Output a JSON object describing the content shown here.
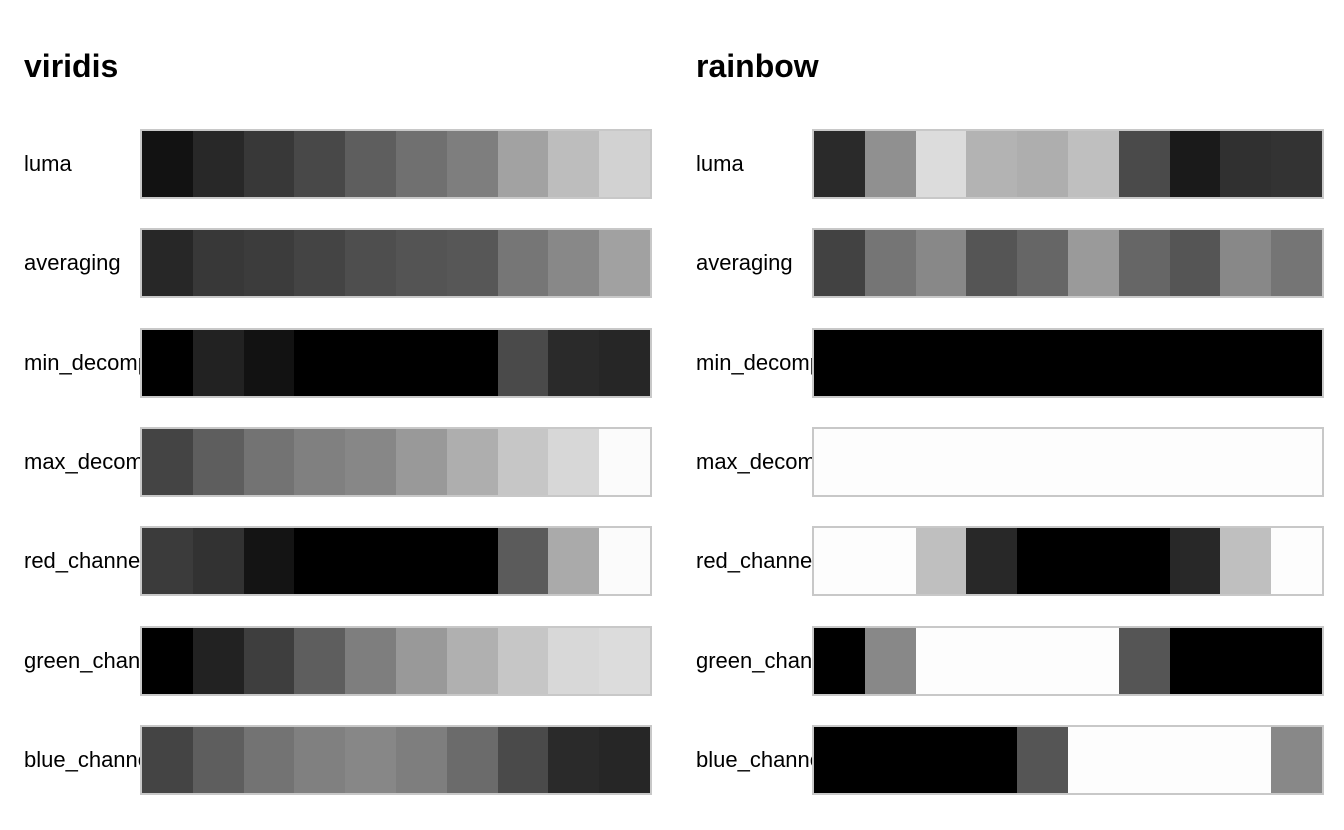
{
  "chart_data": [
    {
      "type": "heatmap",
      "title": "viridis",
      "rows": [
        {
          "label": "luma",
          "colors": [
            "#121212",
            "#282828",
            "#383838",
            "#484848",
            "#5e5e5e",
            "#707070",
            "#7e7e7e",
            "#a2a2a2",
            "#bdbdbd",
            "#d2d2d2"
          ]
        },
        {
          "label": "averaging",
          "colors": [
            "#272727",
            "#383838",
            "#3c3c3c",
            "#444444",
            "#4e4e4e",
            "#545454",
            "#575757",
            "#767676",
            "#888888",
            "#a1a1a1"
          ]
        },
        {
          "label": "min_decomp",
          "colors": [
            "#000000",
            "#222222",
            "#121212",
            "#000000",
            "#000000",
            "#000000",
            "#000000",
            "#4a4a4a",
            "#2a2a2a",
            "#262626"
          ]
        },
        {
          "label": "max_decomp",
          "colors": [
            "#444444",
            "#5e5e5e",
            "#737373",
            "#808080",
            "#878787",
            "#999999",
            "#aeaeae",
            "#c6c6c6",
            "#d7d7d7",
            "#fbfbfb"
          ]
        },
        {
          "label": "red_channel",
          "colors": [
            "#3b3b3b",
            "#323232",
            "#141414",
            "#000000",
            "#000000",
            "#000000",
            "#000000",
            "#5b5b5b",
            "#aaaaaa",
            "#fbfbfb"
          ]
        },
        {
          "label": "green_channel",
          "colors": [
            "#000000",
            "#222222",
            "#3e3e3e",
            "#5e5e5e",
            "#7e7e7e",
            "#999999",
            "#b0b0b0",
            "#c6c6c6",
            "#d8d8d8",
            "#dcdcdc"
          ]
        },
        {
          "label": "blue_channel",
          "colors": [
            "#444444",
            "#5e5e5e",
            "#737373",
            "#808080",
            "#878787",
            "#7e7e7e",
            "#6b6b6b",
            "#4a4a4a",
            "#2a2a2a",
            "#262626"
          ]
        }
      ]
    },
    {
      "type": "heatmap",
      "title": "rainbow",
      "rows": [
        {
          "label": "luma",
          "colors": [
            "#2a2a2a",
            "#909090",
            "#dcdcdc",
            "#b3b3b3",
            "#aeaeae",
            "#bfbfbf",
            "#4a4a4a",
            "#1a1a1a",
            "#303030",
            "#333333"
          ]
        },
        {
          "label": "averaging",
          "colors": [
            "#424242",
            "#757575",
            "#888888",
            "#555555",
            "#666666",
            "#9a9a9a",
            "#666666",
            "#555555",
            "#888888",
            "#757575"
          ]
        },
        {
          "label": "min_decomp",
          "colors": [
            "#000000",
            "#000000",
            "#000000",
            "#000000",
            "#000000",
            "#000000",
            "#000000",
            "#000000",
            "#000000",
            "#000000"
          ]
        },
        {
          "label": "max_decomp",
          "colors": [
            "#fdfdfd",
            "#fdfdfd",
            "#fdfdfd",
            "#fdfdfd",
            "#fdfdfd",
            "#fdfdfd",
            "#fdfdfd",
            "#fdfdfd",
            "#fdfdfd",
            "#fdfdfd"
          ]
        },
        {
          "label": "red_channel",
          "colors": [
            "#fdfdfd",
            "#fdfdfd",
            "#bfbfbf",
            "#282828",
            "#000000",
            "#000000",
            "#000000",
            "#282828",
            "#bfbfbf",
            "#fdfdfd"
          ]
        },
        {
          "label": "green_channel",
          "colors": [
            "#000000",
            "#888888",
            "#fdfdfd",
            "#fdfdfd",
            "#fdfdfd",
            "#fdfdfd",
            "#555555",
            "#000000",
            "#000000",
            "#000000"
          ]
        },
        {
          "label": "blue_channel",
          "colors": [
            "#000000",
            "#000000",
            "#000000",
            "#000000",
            "#555555",
            "#fdfdfd",
            "#fdfdfd",
            "#fdfdfd",
            "#fdfdfd",
            "#888888"
          ]
        }
      ]
    }
  ]
}
